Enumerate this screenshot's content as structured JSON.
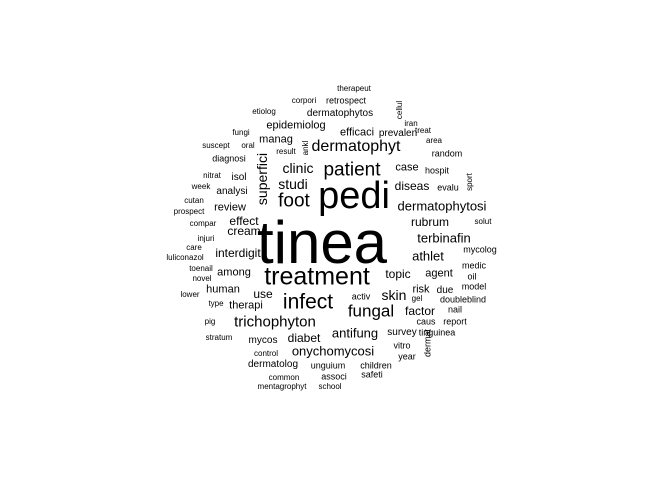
{
  "words": [
    "tinea",
    "pedi",
    "treatment",
    "infect",
    "patient",
    "foot",
    "dermatophyt",
    "fungal",
    "trichophyton",
    "studi",
    "clinic",
    "superfici",
    "dermatophytosi",
    "onychomycosi",
    "antifung",
    "skin",
    "terbinafin",
    "athlet",
    "diseas",
    "rubrum",
    "interdigit",
    "cream",
    "effect",
    "case",
    "topic",
    "factor",
    "agent",
    "human",
    "diabet",
    "use",
    "among",
    "risk",
    "review",
    "analysi",
    "isol",
    "therapi",
    "epidemiolog",
    "manag",
    "dermatophytos",
    "efficaci",
    "retrospect",
    "prevalen",
    "mycos",
    "dermatolog",
    "unguium",
    "associ",
    "children",
    "safeti",
    "survey",
    "vitro",
    "year",
    "dermat",
    "tinguinea",
    "caus",
    "report",
    "due",
    "gel",
    "doubleblind",
    "nail",
    "activ",
    "mycolog",
    "medic",
    "model",
    "oil",
    "solut",
    "sport",
    "evalu",
    "hospit",
    "random",
    "area",
    "treat",
    "iran",
    "cellul",
    "corpori",
    "therapeut",
    "etiolog",
    "fungi",
    "suscept",
    "diagnosi",
    "oral",
    "result",
    "ankl",
    "nitrat",
    "week",
    "cutan",
    "prospect",
    "compar",
    "injuri",
    "care",
    "luliconazol",
    "toenail",
    "novel",
    "lower",
    "type",
    "pig",
    "stratum",
    "control",
    "common",
    "mentagrophyt",
    "school"
  ]
}
